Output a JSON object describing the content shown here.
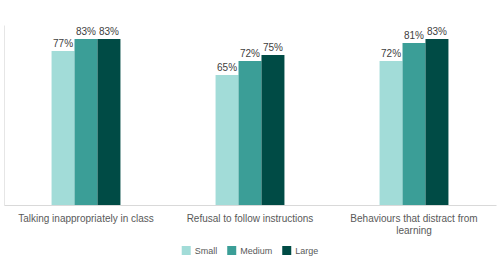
{
  "chart_data": {
    "type": "bar",
    "categories": [
      "Talking inappropriately in class",
      "Refusal to follow instructions",
      "Behaviours that distract from learning"
    ],
    "series": [
      {
        "name": "Small",
        "color": "#a2dcd8",
        "values": [
          77,
          65,
          72
        ],
        "value_labels": [
          "77%",
          "65%",
          "72%"
        ]
      },
      {
        "name": "Medium",
        "color": "#3b9e97",
        "values": [
          83,
          72,
          81
        ],
        "value_labels": [
          "83%",
          "72%",
          "81%"
        ]
      },
      {
        "name": "Large",
        "color": "#004b45",
        "values": [
          83,
          75,
          83
        ],
        "value_labels": [
          "83%",
          "75%",
          "83%"
        ]
      }
    ],
    "ylim": [
      0,
      90
    ],
    "data_labels": true,
    "tick_labels": "x",
    "grid": false,
    "legend": "bottom"
  }
}
